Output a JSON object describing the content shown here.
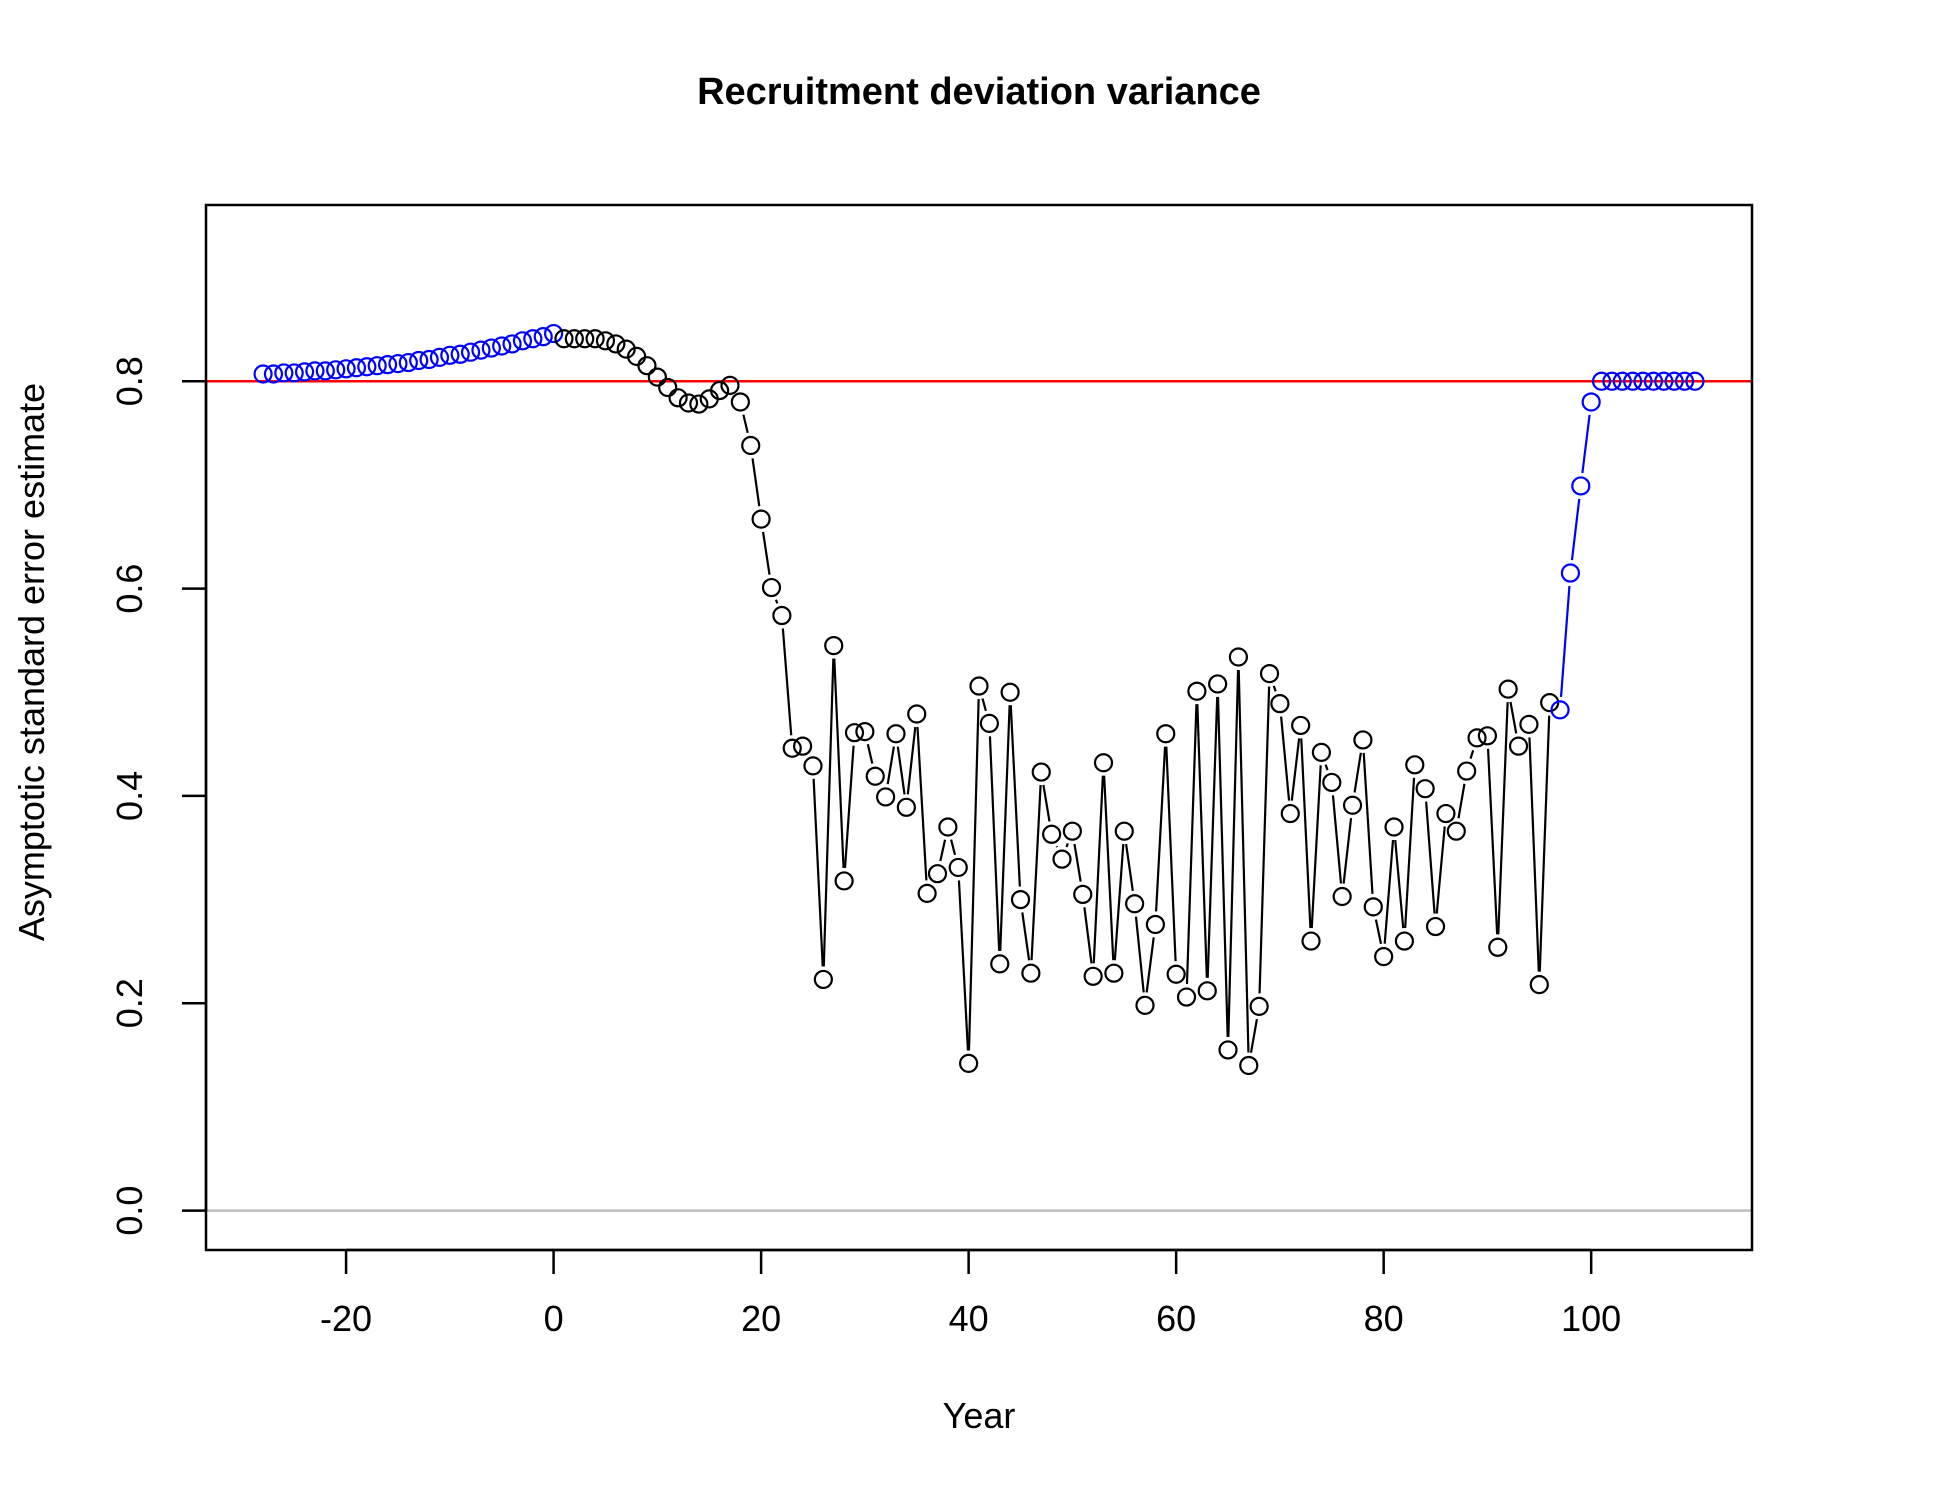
{
  "chart_data": {
    "type": "line",
    "title": "Recruitment deviation variance",
    "xlabel": "Year",
    "ylabel": "Asymptotic standard error estimate",
    "xlim": [
      -33.5,
      115.5
    ],
    "ylim": [
      -0.038,
      0.97
    ],
    "xticks": [
      -20,
      0,
      20,
      40,
      60,
      80,
      100
    ],
    "yticks": [
      0.0,
      0.2,
      0.4,
      0.6,
      0.8
    ],
    "xtick_labels": [
      "-20",
      "0",
      "20",
      "40",
      "60",
      "80",
      "100"
    ],
    "ytick_labels": [
      "0.0",
      "0.2",
      "0.4",
      "0.6",
      "0.8"
    ],
    "reference_lines": [
      {
        "y": 0.8,
        "color": "#ff0000"
      },
      {
        "y": 0.0,
        "color": "#bebebe"
      }
    ],
    "grid": false,
    "legend": "none",
    "series": [
      {
        "color": "#0000ff",
        "line": false,
        "x": [
          -28,
          -27,
          -26,
          -25,
          -24,
          -23,
          -22,
          -21,
          -20,
          -19,
          -18,
          -17,
          -16,
          -15,
          -14,
          -13,
          -12,
          -11,
          -10,
          -9,
          -8,
          -7,
          -6,
          -5,
          -4,
          -3,
          -2,
          -1,
          0
        ],
        "y": [
          0.807,
          0.807,
          0.808,
          0.808,
          0.809,
          0.81,
          0.81,
          0.811,
          0.812,
          0.813,
          0.814,
          0.815,
          0.816,
          0.817,
          0.818,
          0.82,
          0.821,
          0.823,
          0.825,
          0.826,
          0.828,
          0.83,
          0.832,
          0.834,
          0.836,
          0.839,
          0.841,
          0.843,
          0.846
        ]
      },
      {
        "color": "#000000",
        "line": true,
        "x": [
          1,
          2,
          3,
          4,
          5,
          6,
          7,
          8,
          9,
          10,
          11,
          12,
          13,
          14,
          15,
          16,
          17,
          18,
          19,
          20,
          21,
          22,
          23,
          24,
          25,
          26,
          27,
          28,
          29,
          30,
          31,
          32,
          33,
          34,
          35,
          36,
          37,
          38,
          39,
          40,
          41,
          42,
          43,
          44,
          45,
          46,
          47,
          48,
          49,
          50,
          51,
          52,
          53,
          54,
          55,
          56,
          57,
          58,
          59,
          60,
          61,
          62,
          63,
          64,
          65,
          66,
          67,
          68,
          69,
          70,
          71,
          72,
          73,
          74,
          75,
          76,
          77,
          78,
          79,
          80,
          81,
          82,
          83,
          84,
          85,
          86,
          87,
          88,
          89,
          90,
          91,
          92,
          93,
          94,
          95,
          96
        ],
        "y": [
          0.841,
          0.841,
          0.841,
          0.841,
          0.839,
          0.836,
          0.831,
          0.824,
          0.815,
          0.804,
          0.794,
          0.784,
          0.779,
          0.778,
          0.783,
          0.791,
          0.796,
          0.78,
          0.738,
          0.667,
          0.601,
          0.574,
          0.446,
          0.448,
          0.429,
          0.223,
          0.545,
          0.318,
          0.461,
          0.462,
          0.419,
          0.399,
          0.46,
          0.389,
          0.479,
          0.306,
          0.325,
          0.37,
          0.331,
          0.142,
          0.506,
          0.47,
          0.238,
          0.5,
          0.3,
          0.229,
          0.423,
          0.363,
          0.339,
          0.366,
          0.305,
          0.226,
          0.432,
          0.229,
          0.366,
          0.296,
          0.198,
          0.276,
          0.46,
          0.228,
          0.206,
          0.501,
          0.212,
          0.508,
          0.155,
          0.534,
          0.14,
          0.197,
          0.518,
          0.489,
          0.383,
          0.468,
          0.26,
          0.442,
          0.413,
          0.303,
          0.391,
          0.454,
          0.293,
          0.245,
          0.37,
          0.26,
          0.43,
          0.407,
          0.274,
          0.383,
          0.366,
          0.424,
          0.456,
          0.458,
          0.254,
          0.503,
          0.448,
          0.469,
          0.218,
          0.49
        ]
      },
      {
        "color": "#0000ff",
        "line": true,
        "x": [
          97,
          98,
          99,
          100,
          101,
          102,
          103,
          104,
          105,
          106,
          107,
          108,
          109,
          110
        ],
        "y": [
          0.483,
          0.615,
          0.699,
          0.78,
          0.8,
          0.8,
          0.8,
          0.8,
          0.8,
          0.8,
          0.8,
          0.8,
          0.8,
          0.8
        ]
      }
    ]
  }
}
